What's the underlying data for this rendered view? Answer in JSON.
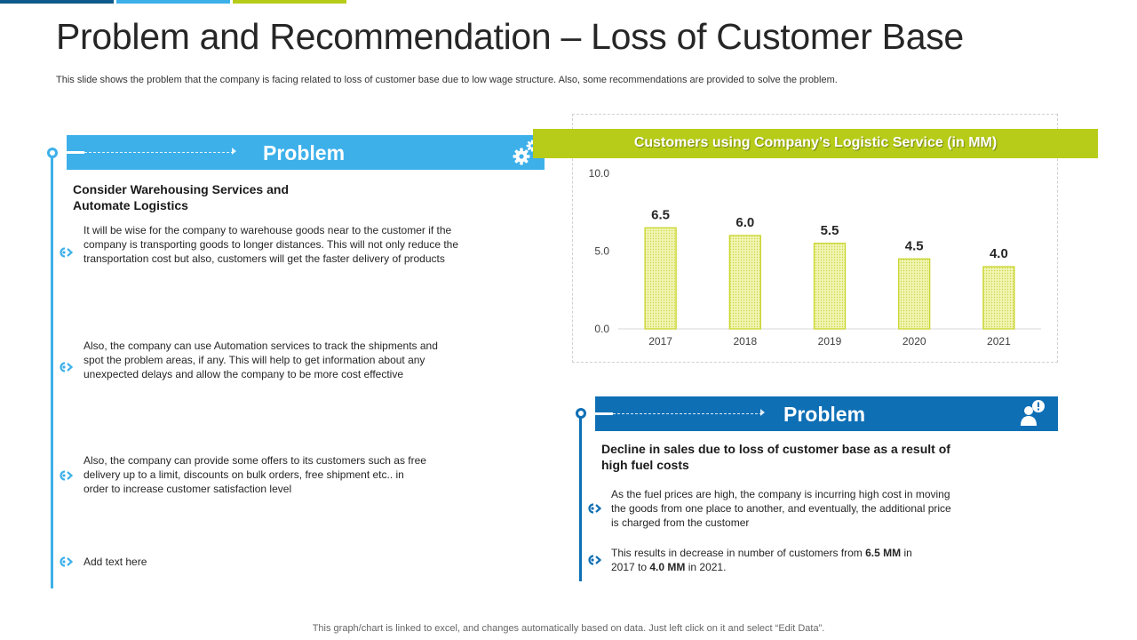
{
  "slide": {
    "title": "Problem and Recommendation – Loss of Customer Base",
    "subtitle": "This slide shows the problem that the company is facing related to loss of customer base due to low wage structure. Also, some recommendations are provided to solve the problem.",
    "footer_note": "This graph/chart is linked to excel,  and changes automatically based on data. Just left click on it and select “Edit Data”."
  },
  "colors": {
    "light_blue": "#3db0ea",
    "dark_blue": "#0e6fb5",
    "lime": "#b7cc18",
    "bar_fill": "#eef2a8",
    "bar_stroke": "#c5d21e"
  },
  "left_panel": {
    "banner_title": "Problem",
    "banner_icon": "gears-icon",
    "heading": "Consider Warehousing Services and Automate Logistics",
    "bullets": [
      "It will be wise for the company to warehouse  goods near to the customer if the company is transporting goods to longer distances. This will not only reduce the transportation cost but also, customers will get the faster delivery  of products",
      "Also, the company can use Automation services  to track the shipments and spot the problem  areas, if any. This will help to get information about any unexpected delays and allow the company to be more cost effective",
      "Also, the company can provide  some offers to its customers such as free delivery  up to a limit, discounts on bulk orders, free shipment etc.. in order to increase customer satisfaction level",
      "Add text here"
    ]
  },
  "right_panel": {
    "banner_title": "Problem",
    "banner_icon": "user-alert-icon",
    "heading": "Decline in sales due to loss of customer base as a result of high fuel costs",
    "bullet_1": "As the fuel prices are high, the company is incurring high cost in moving the goods from one place to another, and eventually,  the additional price is charged from the customer",
    "bullet_2": {
      "p1": "This results in decrease in number of customers from ",
      "b1": "6.5 MM",
      "p2": " in 2017 to ",
      "b2": "4.0 MM",
      "p3": " in 2021."
    }
  },
  "chart_data": {
    "type": "bar",
    "title": "Customers using Company’s Logistic Service (in MM)",
    "categories": [
      "2017",
      "2018",
      "2019",
      "2020",
      "2021"
    ],
    "values": [
      6.5,
      6.0,
      5.5,
      4.5,
      4.0
    ],
    "data_labels": [
      "6.5",
      "6.0",
      "5.5",
      "4.5",
      "4.0"
    ],
    "y_ticks": [
      "0.0",
      "5.0",
      "10.0"
    ],
    "ylim": [
      0,
      10
    ],
    "xlabel": "",
    "ylabel": "",
    "grid": false,
    "legend": "none"
  }
}
